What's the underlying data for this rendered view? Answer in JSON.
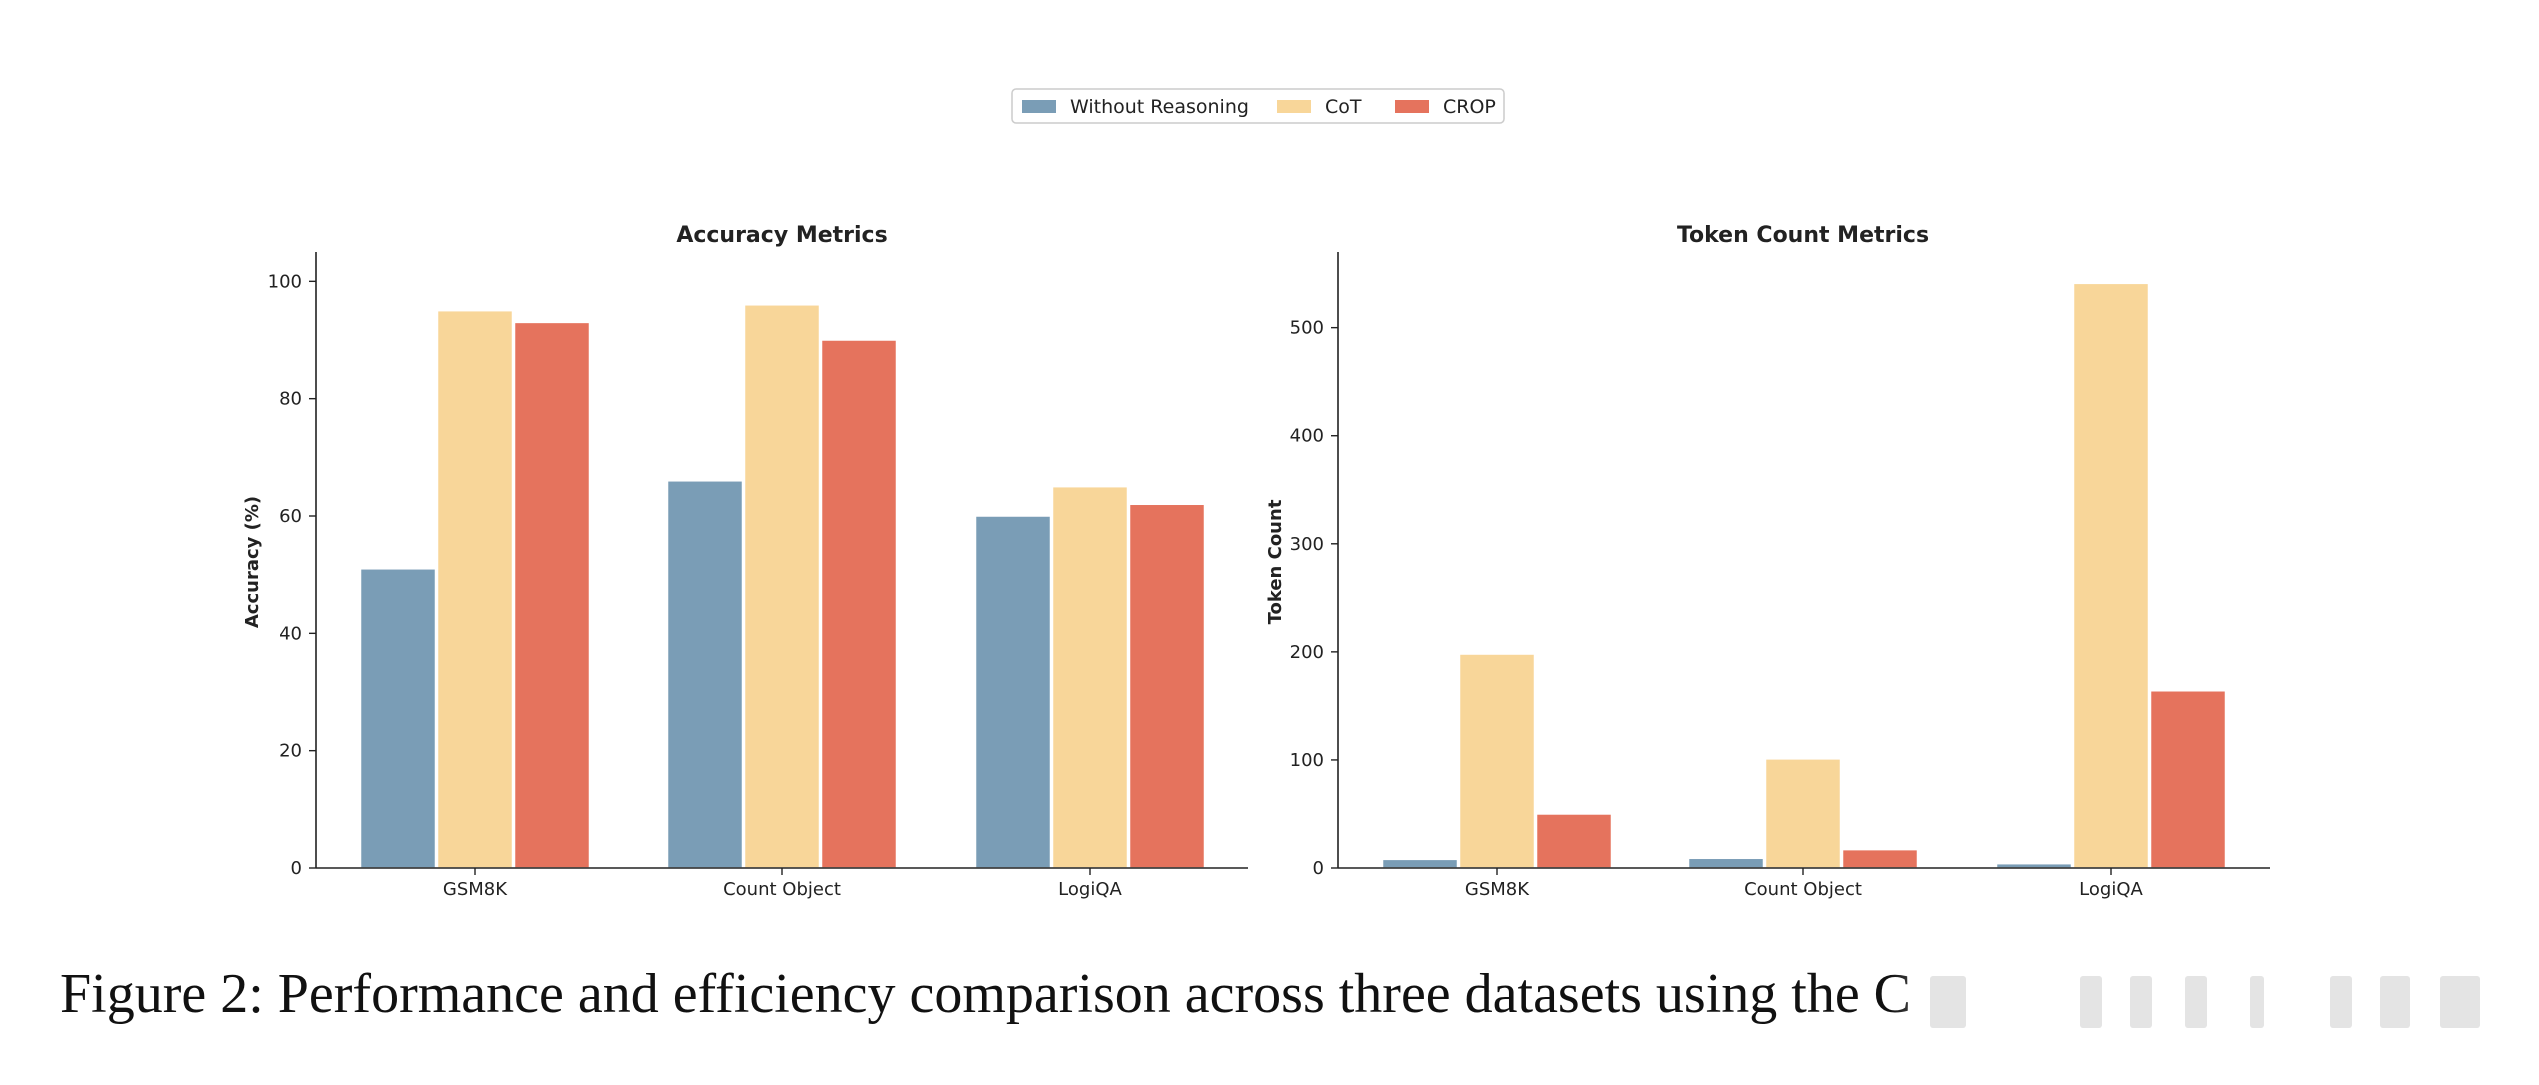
{
  "legend": {
    "items": [
      {
        "label": "Without Reasoning",
        "color": "#7a9db6"
      },
      {
        "label": "CoT",
        "color": "#f8d699"
      },
      {
        "label": "CROP",
        "color": "#e5735d"
      }
    ]
  },
  "chart_data": [
    {
      "type": "bar",
      "title": "Accuracy Metrics",
      "xlabel": "",
      "ylabel": "Accuracy (%)",
      "categories": [
        "GSM8K",
        "Count Object",
        "LogiQA"
      ],
      "ylim": [
        0,
        105
      ],
      "yticks": [
        0,
        20,
        40,
        60,
        80,
        100
      ],
      "series": [
        {
          "name": "Without Reasoning",
          "values": [
            51,
            66,
            60
          ]
        },
        {
          "name": "CoT",
          "values": [
            95,
            96,
            65
          ]
        },
        {
          "name": "CROP",
          "values": [
            93,
            90,
            62
          ]
        }
      ]
    },
    {
      "type": "bar",
      "title": "Token Count Metrics",
      "xlabel": "",
      "ylabel": "Token Count",
      "categories": [
        "GSM8K",
        "Count Object",
        "LogiQA"
      ],
      "ylim": [
        0,
        570
      ],
      "yticks": [
        0,
        100,
        200,
        300,
        400,
        500
      ],
      "series": [
        {
          "name": "Without Reasoning",
          "values": [
            8,
            9,
            4
          ]
        },
        {
          "name": "CoT",
          "values": [
            198,
            101,
            541
          ]
        },
        {
          "name": "CROP",
          "values": [
            50,
            17,
            164
          ]
        }
      ]
    }
  ],
  "caption": {
    "text": "Figure 2: Performance and efficiency comparison across three datasets using the C"
  }
}
